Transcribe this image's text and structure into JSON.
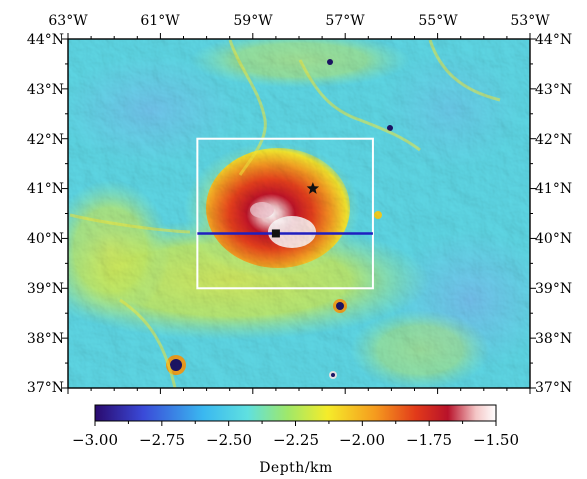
{
  "map": {
    "x_ticks": [
      "63°W",
      "61°W",
      "59°W",
      "57°W",
      "55°W",
      "53°W"
    ],
    "y_ticks_left": [
      "44°N",
      "43°N",
      "42°N",
      "41°N",
      "40°N",
      "39°N",
      "38°N",
      "37°N"
    ],
    "y_ticks_right": [
      "44°N",
      "43°N",
      "42°N",
      "41°N",
      "40°N",
      "39°N",
      "38°N",
      "37°N"
    ],
    "extent": {
      "lon": [
        -63,
        -53
      ],
      "lat": [
        37,
        44
      ]
    },
    "study_box": {
      "lon": [
        -60.2,
        -56.4
      ],
      "lat": [
        39,
        42
      ]
    },
    "profile_line": {
      "lat": 40.1,
      "lon": [
        -60.2,
        -56.4
      ]
    },
    "star_marker": {
      "lon": -57.7,
      "lat": 41.0
    },
    "square_marker": {
      "lon": -58.5,
      "lat": 40.1
    },
    "colors": {
      "frame": "#000000",
      "study_box": "#ffffff",
      "profile_line": "#1f1fbf",
      "marker": "#111111"
    }
  },
  "colorbar": {
    "ticks": [
      "−3.00",
      "−2.75",
      "−2.50",
      "−2.25",
      "−2.00",
      "−1.75",
      "−1.50"
    ],
    "range": [
      -3.0,
      -1.5
    ],
    "label": "Depth/km",
    "colors": [
      "#2a0a6e",
      "#3a4ad8",
      "#3ab8f0",
      "#5fe0e0",
      "#9fe86a",
      "#f5ec2a",
      "#f59a1e",
      "#e23a1a",
      "#b8122a",
      "#f4c6c6",
      "#ffffff"
    ]
  }
}
